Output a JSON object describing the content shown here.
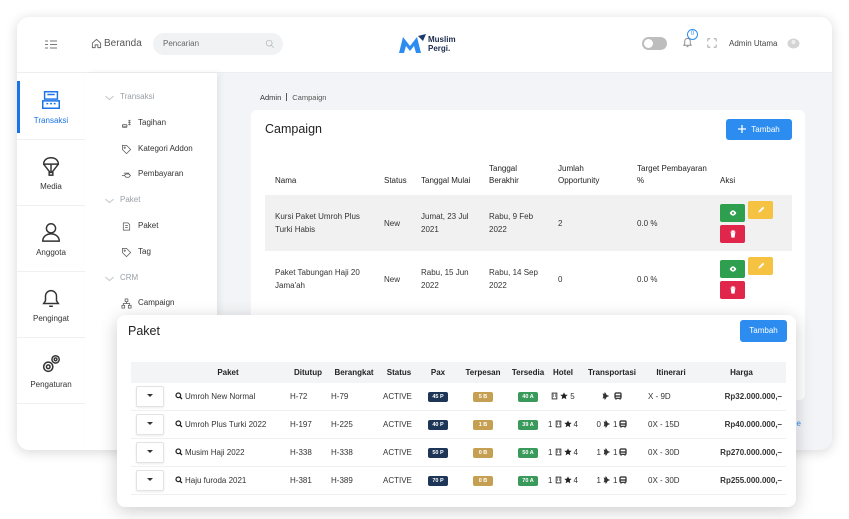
{
  "topbar": {
    "home": "Beranda",
    "search_placeholder": "Pencarian",
    "logo_line1": "Muslim",
    "logo_line2": "Pergi.",
    "notification_count": "0",
    "user": "Admin Utama"
  },
  "sidebar": [
    "Transaksi",
    "Media",
    "Anggota",
    "Pengingat",
    "Pengaturan"
  ],
  "submenu": [
    {
      "group": "Transaksi",
      "items": [
        "Tagihan",
        "Kategori Addon",
        "Pembayaran"
      ]
    },
    {
      "group": "Paket",
      "items": [
        "Paket",
        "Tag"
      ]
    },
    {
      "group": "CRM",
      "items": [
        "Campaign"
      ]
    }
  ],
  "breadcrumb": [
    "Admin",
    "Campaign"
  ],
  "campaign": {
    "title": "Campaign",
    "add_button": "Tambah",
    "columns": [
      "Nama",
      "Status",
      "Tanggal Mulai",
      "Tanggal Berakhir",
      "Jumlah Opportunity",
      "Target Pembayaran %",
      "Aksi"
    ],
    "rows": [
      {
        "name": "Kursi Paket Umroh Plus Turki Habis",
        "status": "New",
        "start": "Jumat, 23 Jul 2021",
        "end": "Rabu, 9 Feb 2022",
        "opportunity": "2",
        "target": "0.0 %"
      },
      {
        "name": "Paket Tabungan Haji 20 Jama'ah",
        "status": "New",
        "start": "Rabu, 15 Jun 2022",
        "end": "Rabu, 14 Sep 2022",
        "opportunity": "0",
        "target": "0.0 %"
      }
    ]
  },
  "background_fragment": "ge",
  "paket": {
    "title": "Paket",
    "add_button": "Tambah",
    "columns": [
      "Paket",
      "Ditutup",
      "Berangkat",
      "Status",
      "Pax",
      "Terpesan",
      "Tersedia",
      "Hotel",
      "Transportasi",
      "Itinerari",
      "Harga"
    ],
    "rows": [
      {
        "name": "Umroh New Normal",
        "closed": "H-72",
        "departure": "H-79",
        "status": "ACTIVE",
        "pax": "45 P",
        "booked": "5 B",
        "available": "40 A",
        "hotel": {
          "stars": "5"
        },
        "itinerary": "X - 9D",
        "price": "Rp32.000.000,–"
      },
      {
        "name": "Umroh Plus Turki 2022",
        "closed": "H-197",
        "departure": "H-225",
        "status": "ACTIVE",
        "pax": "40 P",
        "booked": "1 B",
        "available": "39 A",
        "hotel": {
          "count": "1",
          "stars": "4"
        },
        "transport": {
          "flights": "0",
          "buses": "1"
        },
        "itinerary": "0X - 15D",
        "price": "Rp40.000.000,–"
      },
      {
        "name": "Musim Haji 2022",
        "closed": "H-338",
        "departure": "H-338",
        "status": "ACTIVE",
        "pax": "50 P",
        "booked": "0 B",
        "available": "50 A",
        "hotel": {
          "count": "1",
          "stars": "4"
        },
        "transport": {
          "flights": "1",
          "buses": "1"
        },
        "itinerary": "0X - 30D",
        "price": "Rp270.000.000,–"
      },
      {
        "name": "Haju furoda 2021",
        "closed": "H-381",
        "departure": "H-389",
        "status": "ACTIVE",
        "pax": "70 P",
        "booked": "0 B",
        "available": "70 A",
        "hotel": {
          "count": "1",
          "stars": "4"
        },
        "transport": {
          "flights": "1",
          "buses": "1"
        },
        "itinerary": "0X - 30D",
        "price": "Rp255.000.000,–"
      }
    ]
  }
}
